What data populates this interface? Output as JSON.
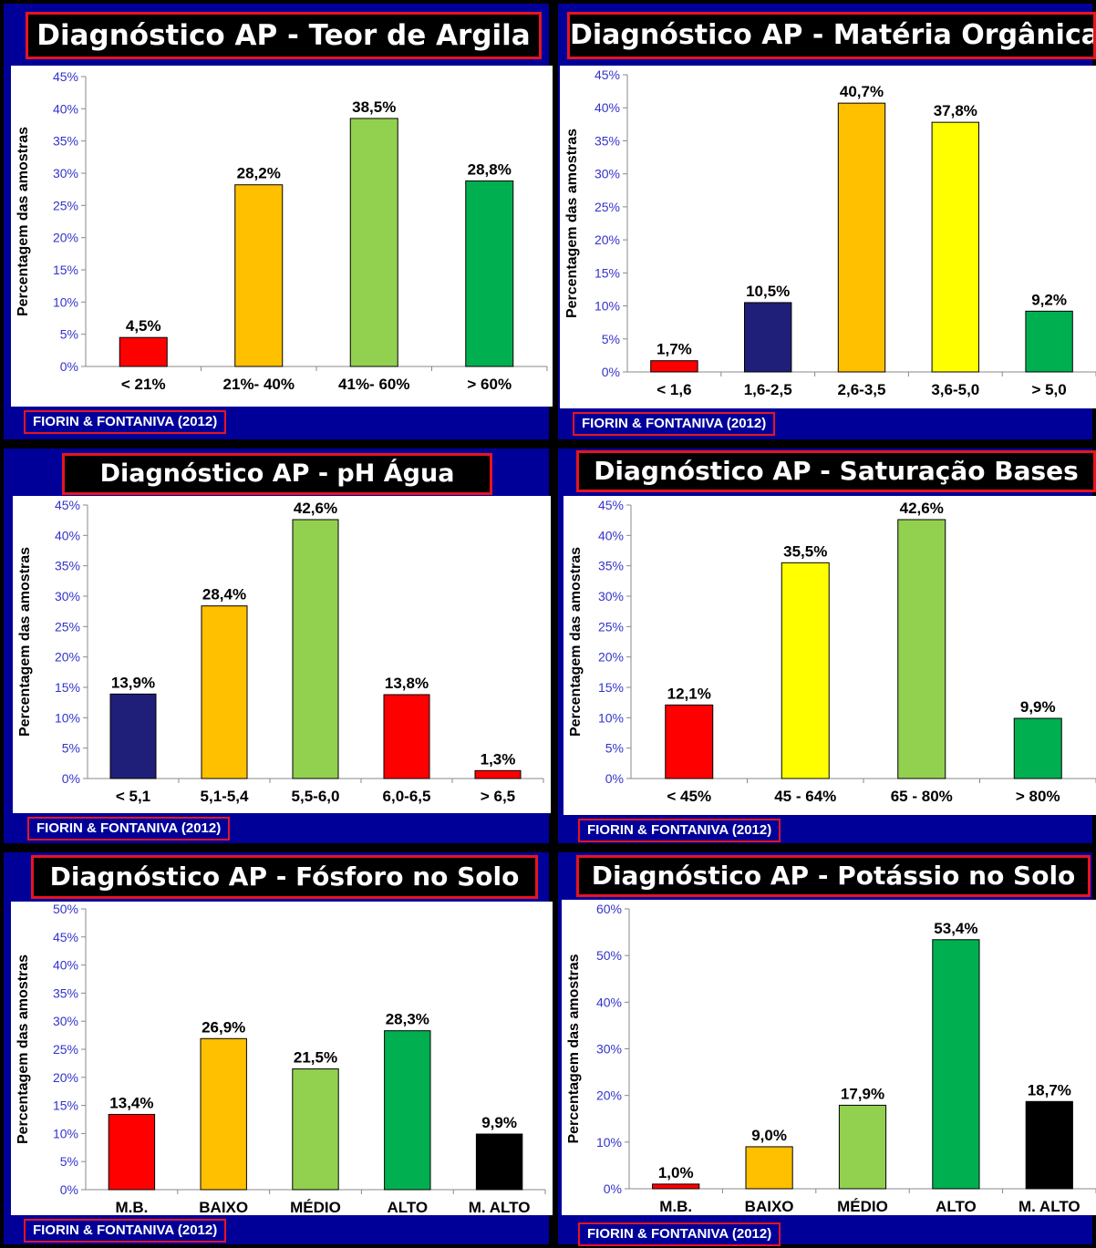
{
  "colors": {
    "background": "#000099",
    "red": "#ff0000",
    "orange": "#ffc000",
    "lightgreen": "#92d050",
    "green": "#00b050",
    "navy": "#1f1f7a",
    "yellow": "#ffff00",
    "black": "#000000",
    "tick": "#3333cc"
  },
  "ylabel": "Percentagem das amostras",
  "footer": "FIORIN & FONTANIVA (2012)",
  "chart_data": [
    {
      "type": "bar",
      "title": "Diagnóstico AP - Teor de Argila",
      "ylabel": "Percentagem das amostras",
      "ylim": [
        0,
        45
      ],
      "yticks": [
        "0%",
        "5%",
        "10%",
        "15%",
        "20%",
        "25%",
        "30%",
        "35%",
        "40%",
        "45%"
      ],
      "categories": [
        "< 21%",
        "21%- 40%",
        "41%- 60%",
        ">  60%"
      ],
      "values": [
        4.5,
        28.2,
        38.5,
        28.8
      ],
      "labels": [
        "4,5%",
        "28,2%",
        "38,5%",
        "28,8%"
      ],
      "bar_colors": [
        "#ff0000",
        "#ffc000",
        "#92d050",
        "#00b050"
      ]
    },
    {
      "type": "bar",
      "title": "Diagnóstico AP - Matéria Orgânica",
      "ylabel": "Percentagem das amostras",
      "ylim": [
        0,
        45
      ],
      "yticks": [
        "0%",
        "5%",
        "10%",
        "15%",
        "20%",
        "25%",
        "30%",
        "35%",
        "40%",
        "45%"
      ],
      "categories": [
        "<  1,6",
        "1,6-2,5",
        "2,6-3,5",
        "3,6-5,0",
        "> 5,0"
      ],
      "values": [
        1.7,
        10.5,
        40.7,
        37.8,
        9.2
      ],
      "labels": [
        "1,7%",
        "10,5%",
        "40,7%",
        "37,8%",
        "9,2%"
      ],
      "bar_colors": [
        "#ff0000",
        "#1f1f7a",
        "#ffc000",
        "#ffff00",
        "#00b050"
      ]
    },
    {
      "type": "bar",
      "title": "Diagnóstico AP - pH Água",
      "ylabel": "Percentagem das amostras",
      "ylim": [
        0,
        45
      ],
      "yticks": [
        "0%",
        "5%",
        "10%",
        "15%",
        "20%",
        "25%",
        "30%",
        "35%",
        "40%",
        "45%"
      ],
      "categories": [
        "< 5,1",
        "5,1-5,4",
        "5,5-6,0",
        "6,0-6,5",
        "> 6,5"
      ],
      "values": [
        13.9,
        28.4,
        42.6,
        13.8,
        1.3
      ],
      "labels": [
        "13,9%",
        "28,4%",
        "42,6%",
        "13,8%",
        "1,3%"
      ],
      "bar_colors": [
        "#1f1f7a",
        "#ffc000",
        "#92d050",
        "#ff0000",
        "#ff0000"
      ]
    },
    {
      "type": "bar",
      "title": "Diagnóstico AP - Saturação Bases",
      "ylabel": "Percentagem das amostras",
      "ylim": [
        0,
        45
      ],
      "yticks": [
        "0%",
        "5%",
        "10%",
        "15%",
        "20%",
        "25%",
        "30%",
        "35%",
        "40%",
        "45%"
      ],
      "categories": [
        "<  45%",
        "45 - 64%",
        "65 - 80%",
        ">  80%"
      ],
      "values": [
        12.1,
        35.5,
        42.6,
        9.9
      ],
      "labels": [
        "12,1%",
        "35,5%",
        "42,6%",
        "9,9%"
      ],
      "bar_colors": [
        "#ff0000",
        "#ffff00",
        "#92d050",
        "#00b050"
      ]
    },
    {
      "type": "bar",
      "title": "Diagnóstico AP - Fósforo no Solo",
      "ylabel": "Percentagem das amostras",
      "ylim": [
        0,
        50
      ],
      "yticks": [
        "0%",
        "5%",
        "10%",
        "15%",
        "20%",
        "25%",
        "30%",
        "35%",
        "40%",
        "45%",
        "50%"
      ],
      "categories": [
        "M.B.",
        "BAIXO",
        "MÉDIO",
        "ALTO",
        "M. ALTO"
      ],
      "values": [
        13.4,
        26.9,
        21.5,
        28.3,
        9.9
      ],
      "labels": [
        "13,4%",
        "26,9%",
        "21,5%",
        "28,3%",
        "9,9%"
      ],
      "bar_colors": [
        "#ff0000",
        "#ffc000",
        "#92d050",
        "#00b050",
        "#000000"
      ]
    },
    {
      "type": "bar",
      "title": "Diagnóstico AP - Potássio no Solo",
      "ylabel": "Percentagem das amostras",
      "ylim": [
        0,
        60
      ],
      "yticks": [
        "0%",
        "10%",
        "20%",
        "30%",
        "40%",
        "50%",
        "60%"
      ],
      "categories": [
        "M.B.",
        "BAIXO",
        "MÉDIO",
        "ALTO",
        "M. ALTO"
      ],
      "values": [
        1.0,
        9.0,
        17.9,
        53.4,
        18.7
      ],
      "labels": [
        "1,0%",
        "9,0%",
        "17,9%",
        "53,4%",
        "18,7%"
      ],
      "bar_colors": [
        "#ff0000",
        "#ffc000",
        "#92d050",
        "#00b050",
        "#000000"
      ]
    }
  ]
}
